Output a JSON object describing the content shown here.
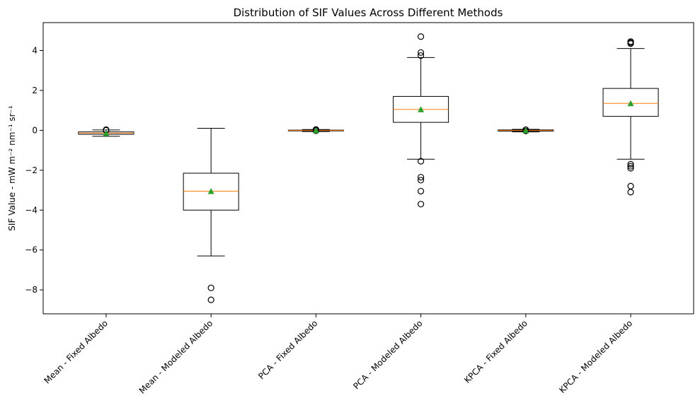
{
  "chart_data": {
    "type": "box",
    "title": "Distribution of SIF Values Across Different Methods",
    "xlabel": "",
    "ylabel": "SIF Value - mW m⁻² nm⁻¹ sr⁻¹",
    "ylim": [
      -9.2,
      5.4
    ],
    "yticks": [
      -8,
      -6,
      -4,
      -2,
      0,
      2,
      4
    ],
    "ytick_labels": [
      "−8",
      "−6",
      "−4",
      "−2",
      "0",
      "2",
      "4"
    ],
    "grid": false,
    "categories": [
      "Mean - Fixed Albedo",
      "Mean - Modeled Albedo",
      "PCA - Fixed Albedo",
      "PCA - Modeled Albedo",
      "KPCA - Fixed Albedo",
      "KPCA - Modeled Albedo"
    ],
    "boxes": [
      {
        "q1": -0.2,
        "median": -0.14,
        "q3": -0.08,
        "whisker_low": -0.3,
        "whisker_high": 0.02,
        "mean": -0.15,
        "outliers": [
          0.0,
          0.03
        ]
      },
      {
        "q1": -4.0,
        "median": -3.05,
        "q3": -2.15,
        "whisker_low": -6.3,
        "whisker_high": 0.1,
        "mean": -3.05,
        "outliers": [
          -7.9,
          -8.5
        ]
      },
      {
        "q1": -0.03,
        "median": -0.01,
        "q3": 0.01,
        "whisker_low": -0.06,
        "whisker_high": 0.04,
        "mean": -0.01,
        "outliers": [
          0.02,
          0.04,
          -0.02
        ]
      },
      {
        "q1": 0.4,
        "median": 1.05,
        "q3": 1.7,
        "whisker_low": -1.45,
        "whisker_high": 3.65,
        "mean": 1.05,
        "outliers": [
          4.7,
          3.9,
          3.75,
          -1.55,
          -2.35,
          -2.5,
          -3.05,
          -3.7
        ]
      },
      {
        "q1": -0.04,
        "median": -0.01,
        "q3": 0.02,
        "whisker_low": -0.08,
        "whisker_high": 0.05,
        "mean": -0.01,
        "outliers": [
          0.03,
          -0.03
        ]
      },
      {
        "q1": 0.7,
        "median": 1.35,
        "q3": 2.1,
        "whisker_low": -1.45,
        "whisker_high": 4.1,
        "mean": 1.35,
        "outliers": [
          4.45,
          4.4,
          4.35,
          -1.7,
          -1.8,
          -1.9,
          -2.8,
          -3.1
        ]
      }
    ],
    "colors": {
      "box": "#000000",
      "median": "#ff7f0e",
      "mean": "#2ca02c",
      "outlier": "#000000"
    }
  }
}
